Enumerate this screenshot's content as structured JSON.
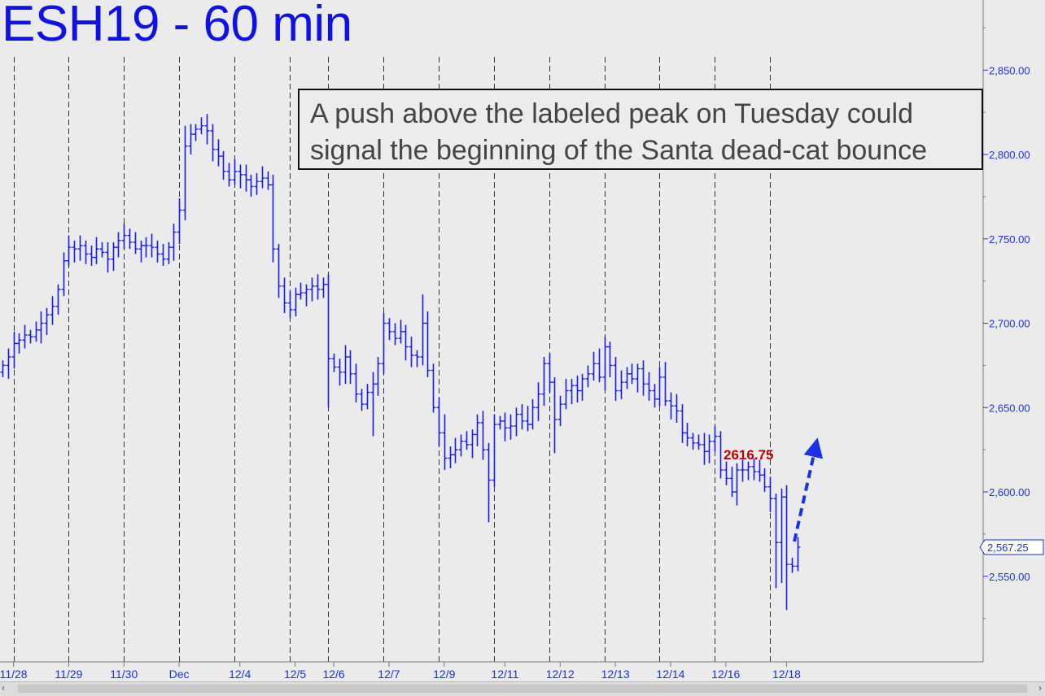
{
  "chart_data": {
    "type": "bar",
    "style": "ohlc-hourly",
    "title": "ESH19 - 60 min",
    "annotation_lines": [
      "A push above the labeled peak on Tuesday could",
      "signal the beginning of the Santa dead-cat bounce"
    ],
    "peak_label": "2616.75",
    "last_price": "2,567.25",
    "ylim": [
      2510,
      2880
    ],
    "yticks": [
      {
        "value": 2850,
        "label": "2,850.00"
      },
      {
        "value": 2800,
        "label": "2,800.00"
      },
      {
        "value": 2750,
        "label": "2,750.00"
      },
      {
        "value": 2700,
        "label": "2,700.00"
      },
      {
        "value": 2650,
        "label": "2,650.00"
      },
      {
        "value": 2600,
        "label": "2,600.00"
      },
      {
        "value": 2550,
        "label": "2,550.00"
      }
    ],
    "xticks": [
      {
        "index": 2,
        "label": "11/28"
      },
      {
        "index": 12,
        "label": "11/29"
      },
      {
        "index": 22,
        "label": "11/30"
      },
      {
        "index": 32,
        "label": "Dec"
      },
      {
        "index": 43,
        "label": "12/4"
      },
      {
        "index": 53,
        "label": "12/5"
      },
      {
        "index": 60,
        "label": "12/6"
      },
      {
        "index": 70,
        "label": "12/7"
      },
      {
        "index": 80,
        "label": "12/9"
      },
      {
        "index": 91,
        "label": "12/11"
      },
      {
        "index": 101,
        "label": "12/12"
      },
      {
        "index": 111,
        "label": "12/13"
      },
      {
        "index": 121,
        "label": "12/14"
      },
      {
        "index": 131,
        "label": "12/16"
      },
      {
        "index": 142,
        "label": "12/18"
      }
    ],
    "session_lines": [
      2,
      12,
      22,
      32,
      42,
      52,
      59,
      69,
      79,
      89,
      99,
      109,
      119,
      129,
      139
    ],
    "bar_count": 145,
    "closes": [
      2675,
      2680,
      2688,
      2690,
      2693,
      2692,
      2696,
      2700,
      2705,
      2710,
      2720,
      2737,
      2745,
      2744,
      2746,
      2741,
      2739,
      2744,
      2742,
      2738,
      2745,
      2749,
      2752,
      2748,
      2744,
      2746,
      2746,
      2745,
      2741,
      2738,
      2745,
      2754,
      2767,
      2805,
      2812,
      2815,
      2817,
      2814,
      2803,
      2799,
      2790,
      2785,
      2790,
      2788,
      2785,
      2781,
      2784,
      2786,
      2782,
      2744,
      2722,
      2712,
      2708,
      2717,
      2718,
      2720,
      2722,
      2720,
      2723,
      2679,
      2674,
      2671,
      2680,
      2670,
      2658,
      2652,
      2659,
      2664,
      2676,
      2700,
      2695,
      2691,
      2695,
      2686,
      2681,
      2680,
      2700,
      2672,
      2650,
      2635,
      2620,
      2622,
      2625,
      2630,
      2628,
      2634,
      2641,
      2625,
      2607,
      2640,
      2642,
      2638,
      2639,
      2646,
      2642,
      2640,
      2650,
      2658,
      2676,
      2665,
      2643,
      2652,
      2660,
      2663,
      2660,
      2667,
      2670,
      2676,
      2668,
      2686,
      2675,
      2660,
      2665,
      2670,
      2667,
      2673,
      2664,
      2660,
      2655,
      2668,
      2654,
      2651,
      2648,
      2635,
      2632,
      2629,
      2628,
      2624,
      2630,
      2633,
      2613,
      2608,
      2600,
      2613,
      2613,
      2615,
      2612,
      2610,
      2603,
      2596,
      2570,
      2597,
      2557,
      2556,
      2567.25
    ]
  }
}
